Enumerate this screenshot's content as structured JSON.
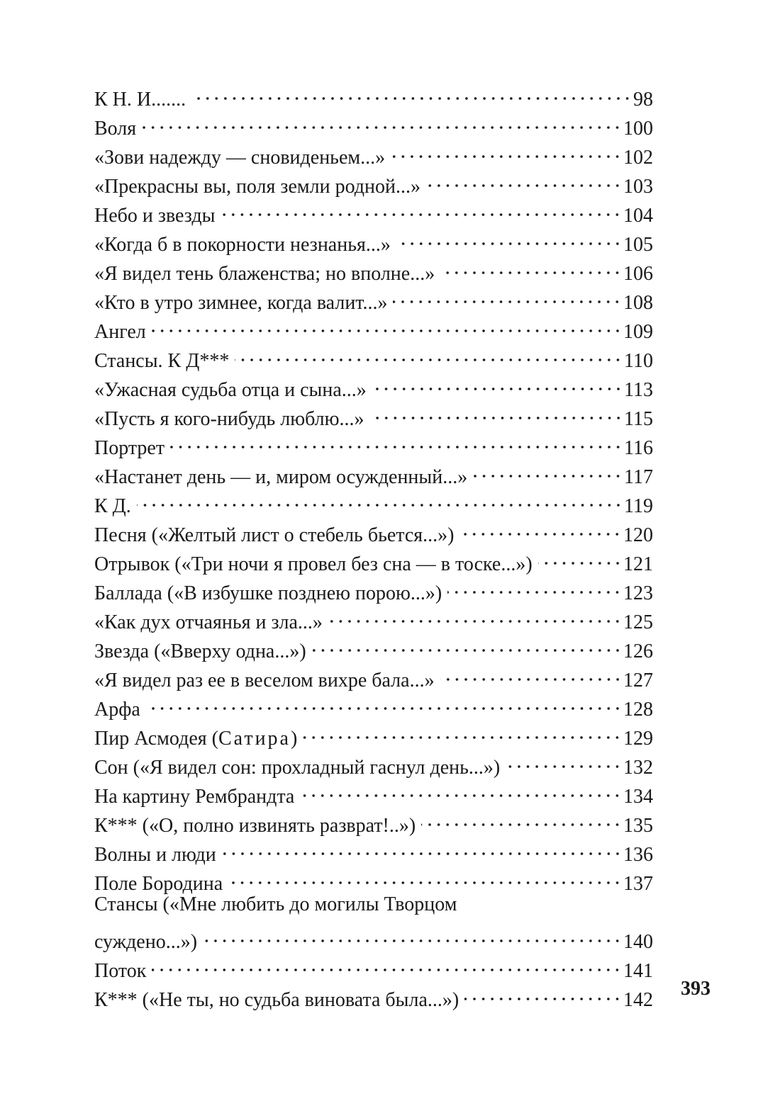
{
  "entries": [
    {
      "title": "К Н. И.......",
      "page": "98"
    },
    {
      "title": "Воля",
      "page": "100"
    },
    {
      "title": "«Зови надежду — сновиденьем...»",
      "page": "102"
    },
    {
      "title": "«Прекрасны вы, поля земли родной...»",
      "page": "103"
    },
    {
      "title": "Небо и звезды",
      "page": "104"
    },
    {
      "title": "«Когда б в покорности незнанья...»",
      "page": "105"
    },
    {
      "title": "«Я видел тень блаженства; но вполне...»",
      "page": "106"
    },
    {
      "title": "«Кто в утро зимнее, когда валит...»",
      "page": "108"
    },
    {
      "title": "Ангел",
      "page": "109"
    },
    {
      "title": "Стансы. К Д***",
      "page": "110"
    },
    {
      "title": "«Ужасная судьба отца и сына...»",
      "page": "113"
    },
    {
      "title": "«Пусть я кого-нибудь люблю...»",
      "page": "115"
    },
    {
      "title": "Портрет",
      "page": "116"
    },
    {
      "title": "«Настанет день — и, миром осужденный...»",
      "page": "117"
    },
    {
      "title": "К Д.",
      "page": "119"
    },
    {
      "title": "Песня («Желтый лист о стебель бьется...»)",
      "page": "120"
    },
    {
      "title": "Отрывок («Три ночи я провел без сна — в тоске...»)",
      "page": "121"
    },
    {
      "title": "Баллада («В избушке позднею порою...»)",
      "page": "123"
    },
    {
      "title": "«Как дух отчаянья и зла...»",
      "page": "125"
    },
    {
      "title": "Звезда («Вверху одна...»)",
      "page": "126"
    },
    {
      "title": "«Я видел раз ее в веселом вихре бала...»",
      "page": "127"
    },
    {
      "title": "Арфа",
      "page": "128"
    },
    {
      "title": "Пир Асмодея (",
      "title_spaced": "Сатира",
      "title_end": ")",
      "page": "129"
    },
    {
      "title": "Сон («Я видел сон: прохладный гаснул день...»)",
      "page": "132"
    },
    {
      "title": "На картину Рембрандта",
      "page": "134"
    },
    {
      "title": "К*** («О, полно извинять разврат!..»)",
      "page": "135"
    },
    {
      "title": "Волны и люди",
      "page": "136"
    },
    {
      "title": "Поле Бородина",
      "page": "137"
    },
    {
      "title": "Стансы («Мне любить до могилы Творцом",
      "title_cont": "суждено...»)",
      "page": "140"
    },
    {
      "title": "Поток",
      "page": "141"
    },
    {
      "title": "К*** («Не ты, но судьба виновата была...»)",
      "page": "142"
    }
  ],
  "folio": "393"
}
